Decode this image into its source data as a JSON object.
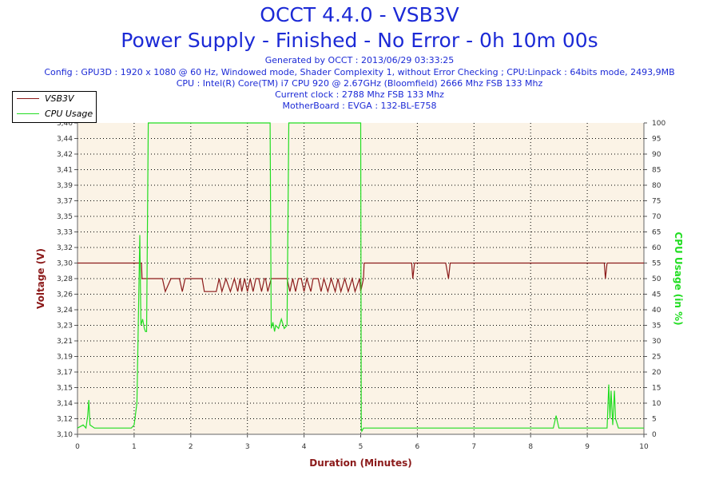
{
  "header": {
    "title": "OCCT 4.4.0 - VSB3V",
    "subtitle": "Power Supply - Finished - No Error - 0h 10m 00s",
    "info": [
      "Generated by OCCT : 2013/06/29 03:33:25",
      "Config : GPU3D : 1920 x 1080 @ 60 Hz, Windowed mode, Shader Complexity 1, without Error Checking ; CPU:Linpack : 64bits mode, 2493,9MB",
      "CPU : Intel(R) Core(TM) i7 CPU 920 @ 2.67GHz (Bloomfield) 2666 Mhz FSB 133 Mhz",
      "Current clock : 2788 Mhz FSB 133 Mhz",
      "MotherBoard : EVGA : 132-BL-E758"
    ]
  },
  "colors": {
    "voltage": "#8b1a1a",
    "cpu": "#22dd22",
    "title": "#1c2ad6",
    "plot_bg": "#fbf3e6"
  },
  "chart_data": {
    "type": "line",
    "xlabel": "Duration (Minutes)",
    "ylabel_left": "Voltage (V)",
    "ylabel_right": "CPU Usage (in %)",
    "xlim": [
      0,
      10
    ],
    "ylim_left": [
      3.1,
      3.46
    ],
    "ylim_right": [
      0,
      100
    ],
    "x_ticks": [
      "0",
      "1",
      "2",
      "3",
      "4",
      "5",
      "6",
      "7",
      "8",
      "9",
      "10"
    ],
    "y_ticks_left": [
      "3,10",
      "3,12",
      "3,14",
      "3,15",
      "3,17",
      "3,19",
      "3,21",
      "3,23",
      "3,24",
      "3,26",
      "3,28",
      "3,30",
      "3,32",
      "3,33",
      "3,35",
      "3,37",
      "3,39",
      "3,41",
      "3,42",
      "3,44",
      "3,46"
    ],
    "y_ticks_right": [
      "0",
      "5",
      "10",
      "15",
      "20",
      "25",
      "30",
      "35",
      "40",
      "45",
      "50",
      "55",
      "60",
      "65",
      "70",
      "75",
      "80",
      "85",
      "90",
      "95",
      "100"
    ],
    "grid": true,
    "legend_position": "top-left",
    "series": [
      {
        "name": "VSB3V",
        "axis": "left",
        "x": [
          0,
          1.13,
          1.14,
          1.2,
          1.5,
          1.55,
          1.65,
          1.7,
          1.8,
          1.85,
          1.9,
          2.2,
          2.24,
          2.3,
          2.35,
          2.45,
          2.5,
          2.55,
          2.62,
          2.7,
          2.77,
          2.83,
          2.87,
          2.9,
          2.95,
          3.0,
          3.05,
          3.1,
          3.15,
          3.2,
          3.25,
          3.3,
          3.32,
          3.36,
          3.42,
          3.46,
          3.5,
          3.55,
          3.6,
          3.65,
          3.7,
          3.75,
          3.8,
          3.85,
          3.9,
          3.95,
          4.0,
          4.05,
          4.12,
          4.16,
          4.25,
          4.3,
          4.35,
          4.42,
          4.48,
          4.55,
          4.6,
          4.65,
          4.72,
          4.78,
          4.85,
          4.9,
          4.98,
          5.0,
          5.05,
          5.06,
          5.2,
          5.5,
          5.9,
          5.92,
          5.95,
          6.0,
          6.5,
          6.55,
          6.58,
          6.62,
          7.0,
          8.0,
          9.0,
          9.3,
          9.32,
          9.35,
          9.38,
          10
        ],
        "values": [
          3.298,
          3.298,
          3.28,
          3.28,
          3.28,
          3.265,
          3.28,
          3.28,
          3.28,
          3.265,
          3.28,
          3.28,
          3.265,
          3.265,
          3.265,
          3.265,
          3.28,
          3.265,
          3.28,
          3.265,
          3.28,
          3.265,
          3.28,
          3.265,
          3.28,
          3.265,
          3.28,
          3.265,
          3.28,
          3.28,
          3.265,
          3.28,
          3.28,
          3.265,
          3.28,
          3.28,
          3.28,
          3.28,
          3.28,
          3.28,
          3.28,
          3.265,
          3.28,
          3.265,
          3.28,
          3.28,
          3.265,
          3.28,
          3.265,
          3.28,
          3.28,
          3.265,
          3.28,
          3.265,
          3.28,
          3.265,
          3.28,
          3.265,
          3.28,
          3.265,
          3.28,
          3.265,
          3.28,
          3.265,
          3.28,
          3.298,
          3.298,
          3.298,
          3.298,
          3.28,
          3.298,
          3.298,
          3.298,
          3.28,
          3.298,
          3.298,
          3.298,
          3.298,
          3.298,
          3.298,
          3.28,
          3.298,
          3.298,
          3.298
        ]
      },
      {
        "name": "CPU Usage",
        "axis": "right",
        "x": [
          0,
          0.1,
          0.15,
          0.18,
          0.2,
          0.22,
          0.3,
          0.5,
          0.7,
          0.95,
          1.0,
          1.05,
          1.1,
          1.12,
          1.15,
          1.18,
          1.2,
          1.22,
          1.25,
          1.28,
          1.3,
          3.4,
          3.42,
          3.45,
          3.48,
          3.5,
          3.55,
          3.6,
          3.65,
          3.7,
          3.73,
          3.75,
          5.0,
          5.01,
          5.02,
          5.05,
          5.2,
          5.5,
          6.0,
          6.5,
          7.0,
          7.5,
          8.0,
          8.4,
          8.45,
          8.5,
          8.9,
          9.0,
          9.35,
          9.38,
          9.4,
          9.42,
          9.45,
          9.48,
          9.5,
          9.55,
          9.6,
          10
        ],
        "values": [
          2,
          3,
          2,
          6,
          11,
          3,
          2,
          2,
          2,
          2,
          3,
          10,
          64,
          35,
          37,
          34,
          33,
          33,
          100,
          100,
          100,
          100,
          34,
          36,
          33,
          35,
          34,
          37,
          34,
          35,
          100,
          100,
          100,
          2,
          1,
          2,
          2,
          2,
          2,
          2,
          2,
          2,
          2,
          2,
          6,
          2,
          2,
          2,
          2,
          16,
          5,
          14,
          3,
          14,
          5,
          2,
          2,
          2
        ]
      }
    ]
  }
}
